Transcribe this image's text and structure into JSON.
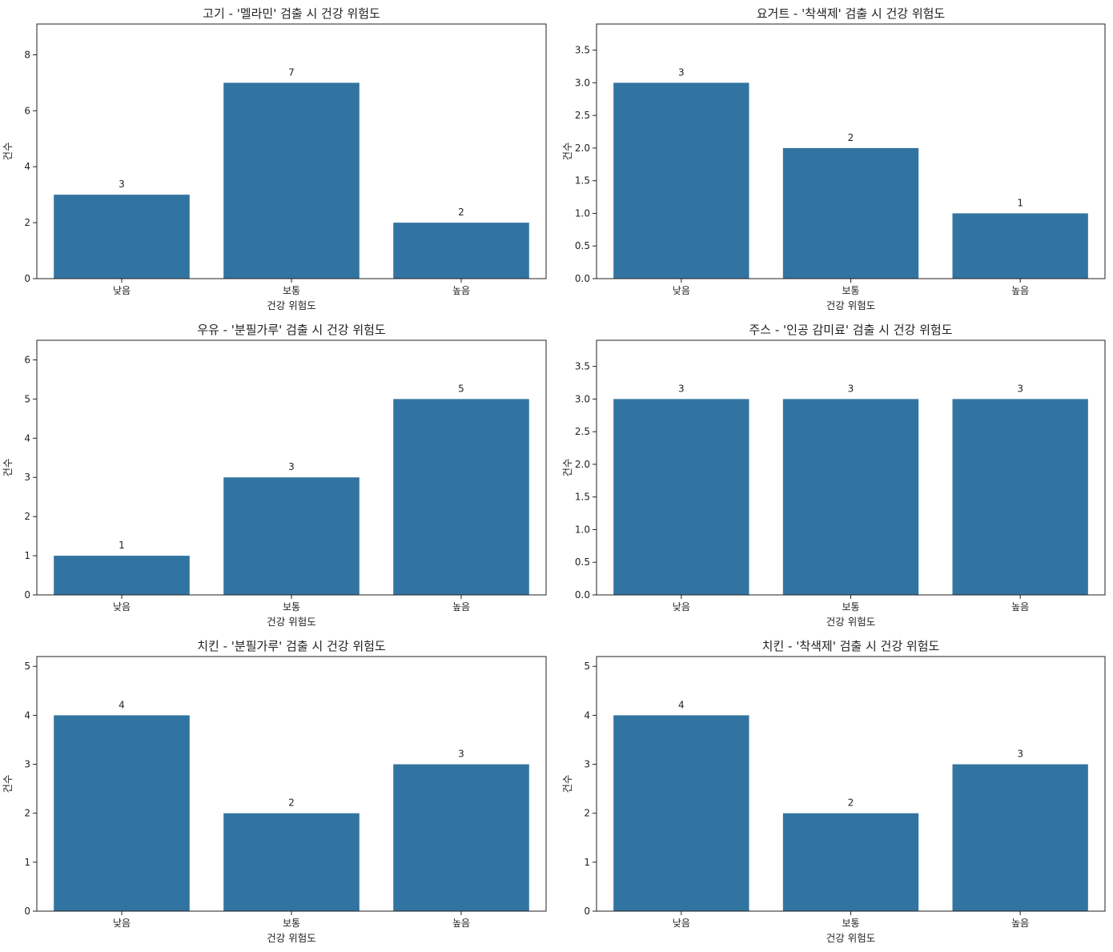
{
  "chart_data": [
    {
      "type": "bar",
      "title": "고기 - '멜라민' 검출 시 건강 위험도",
      "categories": [
        "낮음",
        "보통",
        "높음"
      ],
      "values": [
        3,
        7,
        2
      ],
      "xlabel": "건강 위험도",
      "ylabel": "건수",
      "ylim": [
        0,
        9.1
      ],
      "yticks": [
        0,
        2,
        4,
        6,
        8
      ],
      "ytick_labels": [
        "0",
        "2",
        "4",
        "6",
        "8"
      ],
      "data_labels": [
        "3",
        "7",
        "2"
      ],
      "color": "#3274a1"
    },
    {
      "type": "bar",
      "title": "요거트 - '착색제' 검출 시 건강 위험도",
      "categories": [
        "낮음",
        "보통",
        "높음"
      ],
      "values": [
        3,
        2,
        1
      ],
      "xlabel": "건강 위험도",
      "ylabel": "건수",
      "ylim": [
        0,
        3.9
      ],
      "yticks": [
        0,
        0.5,
        1,
        1.5,
        2,
        2.5,
        3,
        3.5
      ],
      "ytick_labels": [
        "0.0",
        "0.5",
        "1.0",
        "1.5",
        "2.0",
        "2.5",
        "3.0",
        "3.5"
      ],
      "data_labels": [
        "3",
        "2",
        "1"
      ],
      "color": "#3274a1"
    },
    {
      "type": "bar",
      "title": "우유 - '분필가루' 검출 시 건강 위험도",
      "categories": [
        "낮음",
        "보통",
        "높음"
      ],
      "values": [
        1,
        3,
        5
      ],
      "xlabel": "건강 위험도",
      "ylabel": "건수",
      "ylim": [
        0,
        6.5
      ],
      "yticks": [
        0,
        1,
        2,
        3,
        4,
        5,
        6
      ],
      "ytick_labels": [
        "0",
        "1",
        "2",
        "3",
        "4",
        "5",
        "6"
      ],
      "data_labels": [
        "1",
        "3",
        "5"
      ],
      "color": "#3274a1"
    },
    {
      "type": "bar",
      "title": "주스 - '인공 감미료' 검출 시 건강 위험도",
      "categories": [
        "낮음",
        "보통",
        "높음"
      ],
      "values": [
        3,
        3,
        3
      ],
      "xlabel": "건강 위험도",
      "ylabel": "건수",
      "ylim": [
        0,
        3.9
      ],
      "yticks": [
        0,
        0.5,
        1,
        1.5,
        2,
        2.5,
        3,
        3.5
      ],
      "ytick_labels": [
        "0.0",
        "0.5",
        "1.0",
        "1.5",
        "2.0",
        "2.5",
        "3.0",
        "3.5"
      ],
      "data_labels": [
        "3",
        "3",
        "3"
      ],
      "color": "#3274a1"
    },
    {
      "type": "bar",
      "title": "치킨 - '분필가루' 검출 시 건강 위험도",
      "categories": [
        "낮음",
        "보통",
        "높음"
      ],
      "values": [
        4,
        2,
        3
      ],
      "xlabel": "건강 위험도",
      "ylabel": "건수",
      "ylim": [
        0,
        5.2
      ],
      "yticks": [
        0,
        1,
        2,
        3,
        4,
        5
      ],
      "ytick_labels": [
        "0",
        "1",
        "2",
        "3",
        "4",
        "5"
      ],
      "data_labels": [
        "4",
        "2",
        "3"
      ],
      "color": "#3274a1"
    },
    {
      "type": "bar",
      "title": "치킨 - '착색제' 검출 시 건강 위험도",
      "categories": [
        "낮음",
        "보통",
        "높음"
      ],
      "values": [
        4,
        2,
        3
      ],
      "xlabel": "건강 위험도",
      "ylabel": "건수",
      "ylim": [
        0,
        5.2
      ],
      "yticks": [
        0,
        1,
        2,
        3,
        4,
        5
      ],
      "ytick_labels": [
        "0",
        "1",
        "2",
        "3",
        "4",
        "5"
      ],
      "data_labels": [
        "4",
        "2",
        "3"
      ],
      "color": "#3274a1"
    }
  ]
}
